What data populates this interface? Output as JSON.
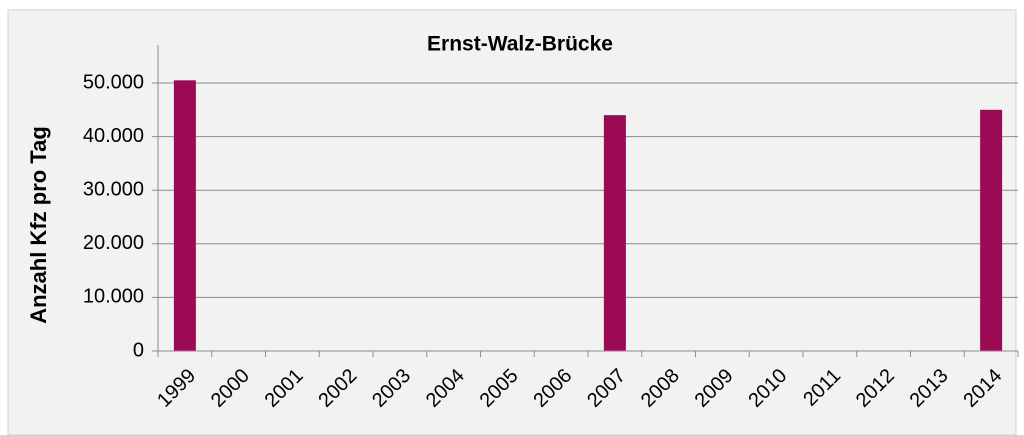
{
  "chart_data": {
    "type": "bar",
    "title": "Ernst-Walz-Brücke",
    "y_label": "Anzahl Kfz pro Tag",
    "categories": [
      "1999",
      "2000",
      "2001",
      "2002",
      "2003",
      "2004",
      "2005",
      "2006",
      "2007",
      "2008",
      "2009",
      "2010",
      "2011",
      "2012",
      "2013",
      "2014"
    ],
    "values": [
      50500,
      null,
      null,
      null,
      null,
      null,
      null,
      null,
      44000,
      null,
      null,
      null,
      null,
      null,
      null,
      45000
    ],
    "color": "#9b0a52",
    "ylim": [
      0,
      50000
    ],
    "yticks": [
      0,
      {
        "value": 10000,
        "label": "10.000"
      },
      {
        "value": 20000,
        "label": "20.000"
      },
      {
        "value": 30000,
        "label": "30.000"
      },
      {
        "value": 40000,
        "label": "40.000"
      },
      {
        "value": 50000,
        "label": "50.000"
      }
    ],
    "grid": true
  }
}
